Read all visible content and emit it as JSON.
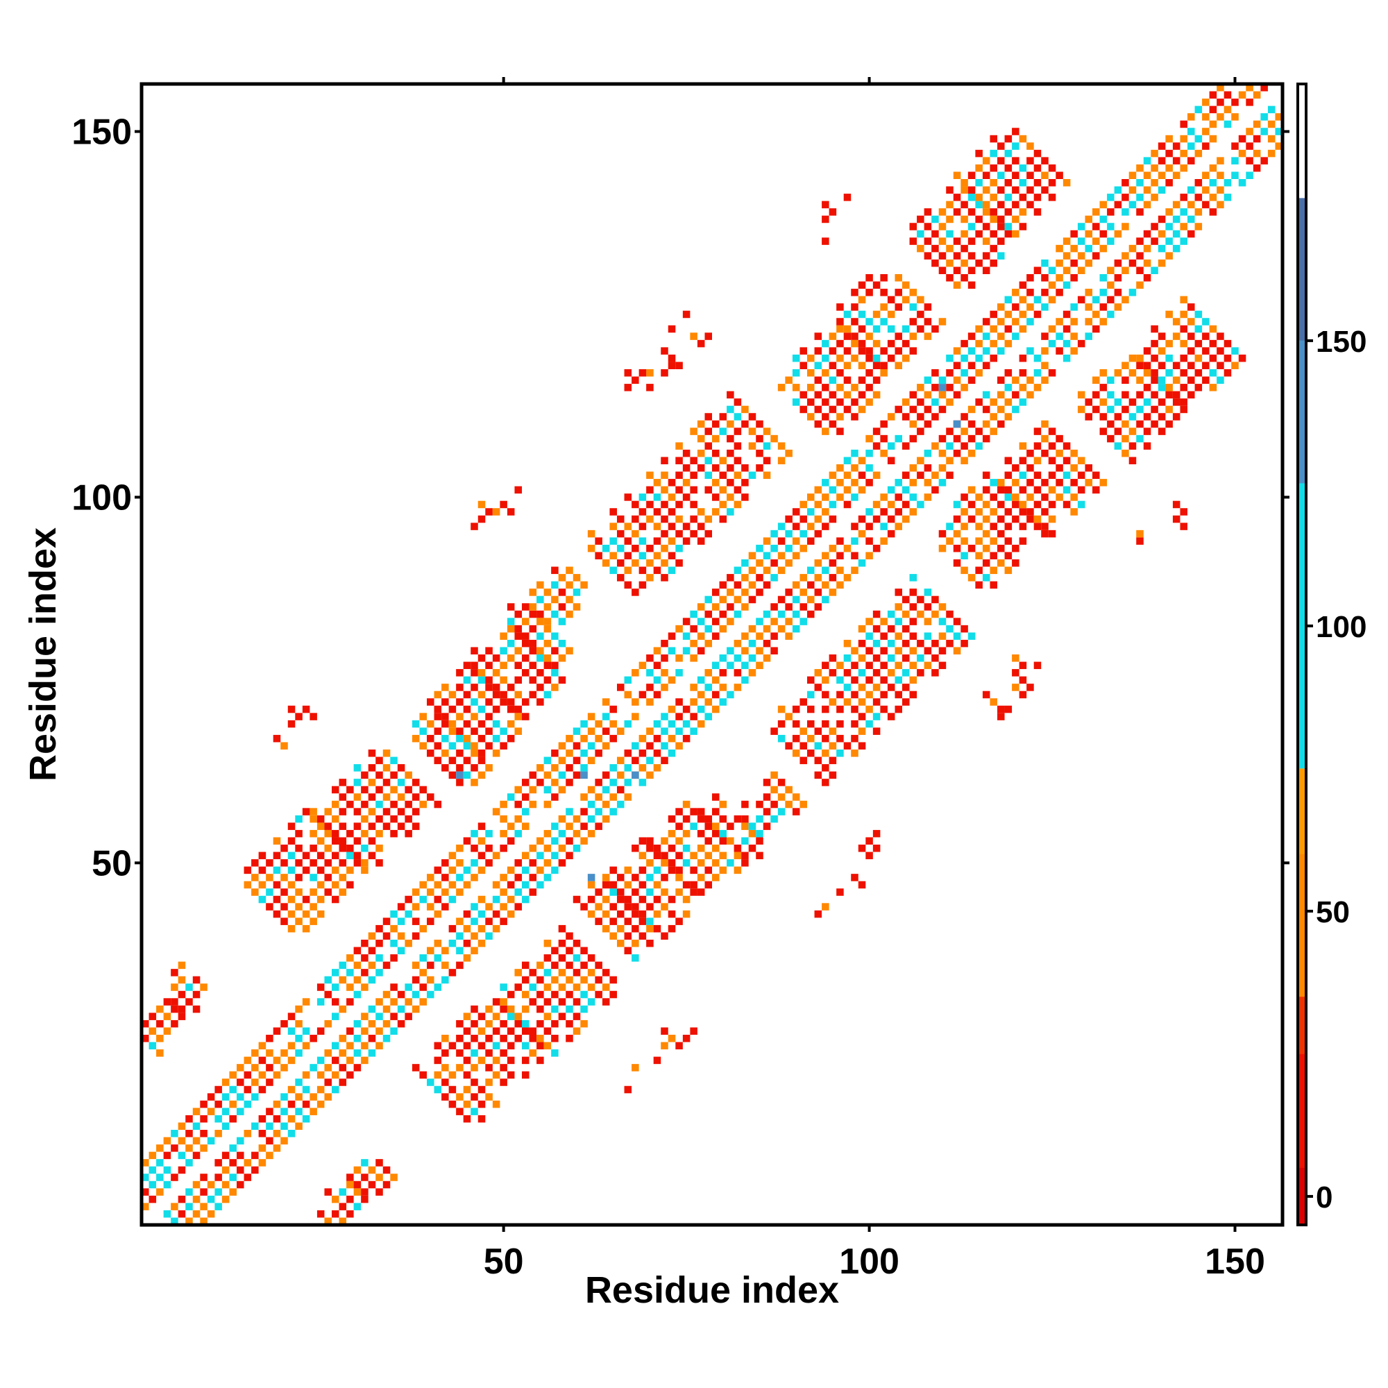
{
  "chart_data": {
    "type": "heatmap",
    "xlabel": "Residue index",
    "ylabel": "Residue index",
    "xlim": [
      1,
      156
    ],
    "ylim": [
      1,
      156
    ],
    "xticks": [
      50,
      100,
      150
    ],
    "yticks": [
      50,
      100,
      150
    ],
    "colorbar": {
      "ticks": [
        0,
        50,
        100,
        150
      ],
      "range": [
        -5,
        195
      ],
      "bins": [
        {
          "from": -5,
          "to": 25,
          "color": "#ee1100"
        },
        {
          "from": 25,
          "to": 75,
          "color": "#ff8800"
        },
        {
          "from": 75,
          "to": 175,
          "color": "#11dde8"
        },
        {
          "from": 175,
          "to": 195,
          "color": "#ffffff"
        }
      ]
    },
    "palette": {
      "red": "#ee1100",
      "orange": "#ff8800",
      "cyan": "#11dde8",
      "blue": "#4a8fc8",
      "dark_blue": "#4a6fa8"
    },
    "grid": false,
    "contact_regions": [
      {
        "label": "main-diagonal",
        "x": [
          1,
          155
        ],
        "y": [
          1,
          155
        ],
        "width": 4,
        "mix": "diagonal"
      },
      {
        "label": "band-1a",
        "x": [
          18,
          37
        ],
        "y": [
          44,
          62
        ],
        "width": 4,
        "mix": "red"
      },
      {
        "label": "band-1b",
        "x": [
          42,
          62
        ],
        "y": [
          18,
          37
        ],
        "width": 4,
        "mix": "red"
      },
      {
        "label": "band-2a",
        "x": [
          41,
          56
        ],
        "y": [
          64,
          82
        ],
        "width": 4,
        "mix": "red"
      },
      {
        "label": "band-2b",
        "x": [
          64,
          82
        ],
        "y": [
          41,
          56
        ],
        "width": 4,
        "mix": "red"
      },
      {
        "label": "band-3a",
        "x": [
          65,
          85
        ],
        "y": [
          90,
          110
        ],
        "width": 4,
        "mix": "red"
      },
      {
        "label": "band-3b",
        "x": [
          90,
          110
        ],
        "y": [
          65,
          85
        ],
        "width": 4,
        "mix": "red"
      },
      {
        "label": "band-4a",
        "x": [
          91,
          106
        ],
        "y": [
          112,
          128
        ],
        "width": 4,
        "mix": "red"
      },
      {
        "label": "band-4b",
        "x": [
          112,
          128
        ],
        "y": [
          91,
          106
        ],
        "width": 4,
        "mix": "red"
      },
      {
        "label": "band-5a",
        "x": [
          109,
          123
        ],
        "y": [
          132,
          147
        ],
        "width": 4,
        "mix": "red"
      },
      {
        "label": "band-5b",
        "x": [
          132,
          147
        ],
        "y": [
          109,
          123
        ],
        "width": 4,
        "mix": "red"
      },
      {
        "label": "band-6a",
        "x": [
          55,
          60
        ],
        "y": [
          84,
          89
        ],
        "width": 2,
        "mix": "orange"
      },
      {
        "label": "band-6b",
        "x": [
          84,
          89
        ],
        "y": [
          55,
          60
        ],
        "width": 2,
        "mix": "orange"
      },
      {
        "label": "far-1a",
        "x": [
          19,
          28
        ],
        "y": [
          67,
          75
        ],
        "width": 1,
        "mix": "sparse"
      },
      {
        "label": "far-1b",
        "x": [
          67,
          75
        ],
        "y": [
          19,
          28
        ],
        "width": 1,
        "mix": "sparse"
      },
      {
        "label": "far-2a",
        "x": [
          43,
          53
        ],
        "y": [
          93,
          102
        ],
        "width": 1,
        "mix": "sparse"
      },
      {
        "label": "far-2b",
        "x": [
          93,
          102
        ],
        "y": [
          43,
          53
        ],
        "width": 1,
        "mix": "sparse"
      },
      {
        "label": "far-3a",
        "x": [
          68,
          78
        ],
        "y": [
          113,
          122
        ],
        "width": 1,
        "mix": "sparse"
      },
      {
        "label": "far-3b",
        "x": [
          113,
          122
        ],
        "y": [
          68,
          78
        ],
        "width": 1,
        "mix": "sparse"
      },
      {
        "label": "far-4a",
        "x": [
          93,
          98
        ],
        "y": [
          136,
          143
        ],
        "width": 1,
        "mix": "sparse"
      },
      {
        "label": "far-4b",
        "x": [
          136,
          143
        ],
        "y": [
          93,
          98
        ],
        "width": 1,
        "mix": "sparse"
      },
      {
        "label": "far-5a",
        "x": [
          114,
          124
        ],
        "y": [
          66,
          76
        ],
        "width": 1,
        "mix": "sparse"
      },
      {
        "label": "far-5b",
        "x": [
          66,
          76
        ],
        "y": [
          114,
          124
        ],
        "width": 1,
        "mix": "sparse"
      },
      {
        "label": "corner-a",
        "x": [
          1,
          8
        ],
        "y": [
          26,
          34
        ],
        "width": 2,
        "mix": "red"
      },
      {
        "label": "corner-b",
        "x": [
          26,
          34
        ],
        "y": [
          1,
          8
        ],
        "width": 2,
        "mix": "red"
      }
    ]
  }
}
